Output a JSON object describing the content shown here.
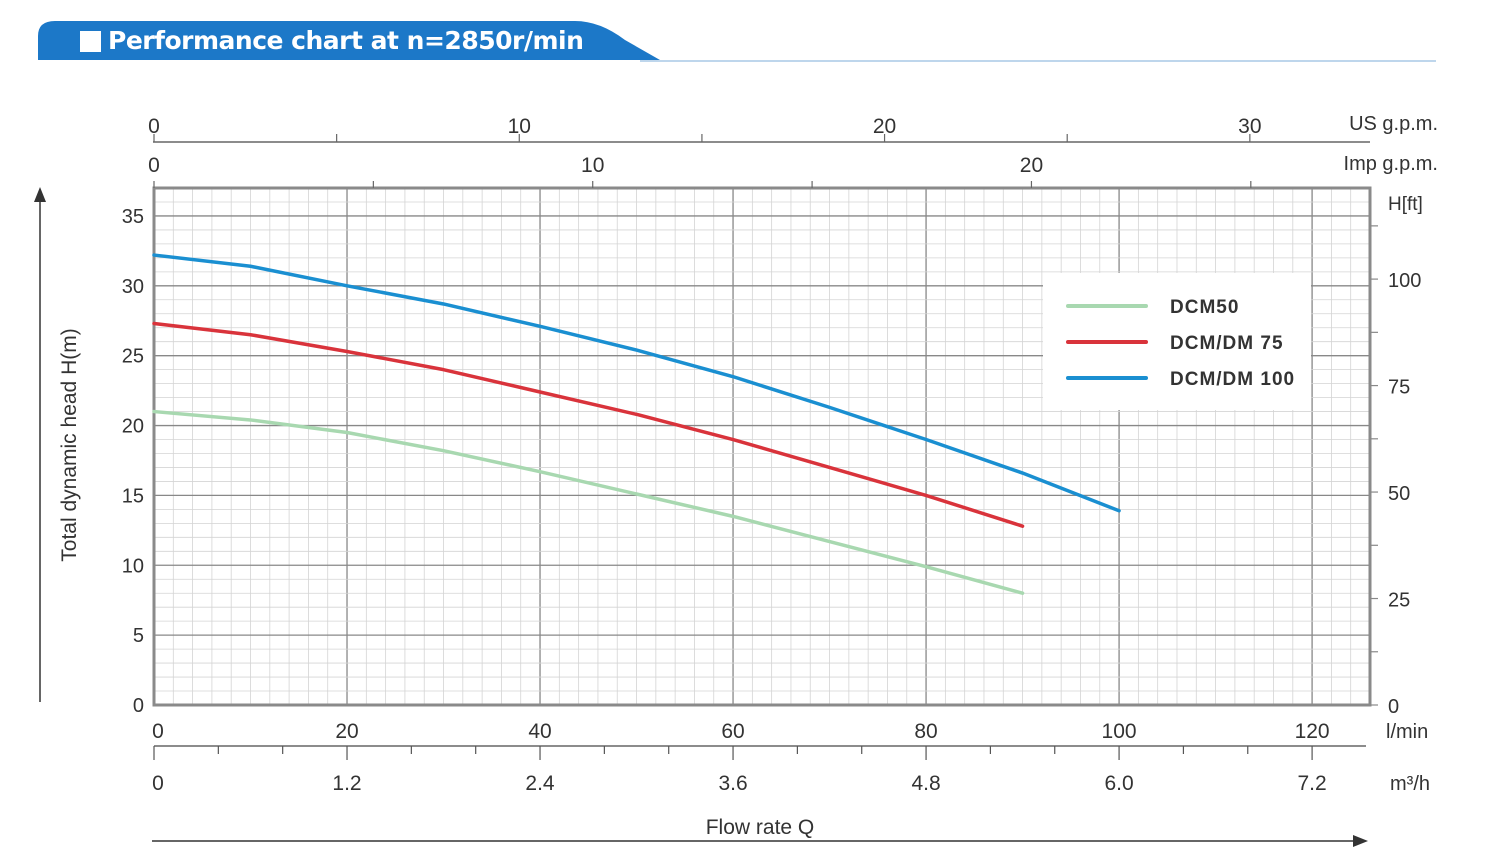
{
  "header": {
    "title": "Performance chart at n=2850r/min"
  },
  "chart_data": {
    "type": "line",
    "title": "Performance chart at n=2850r/min",
    "xlabel": "Flow rate Q",
    "ylabel": "Total dynamic head H(m)",
    "xlim": [
      0,
      126
    ],
    "ylim": [
      0,
      37
    ],
    "grid": true,
    "legend_position": "top-right",
    "x_ticks_lmin": [
      "0",
      "20",
      "40",
      "60",
      "80",
      "100",
      "120"
    ],
    "x_unit_lmin": "l/min",
    "x_ticks_m3h": [
      "0",
      "1.2",
      "2.4",
      "3.6",
      "4.8",
      "6.0",
      "7.2"
    ],
    "x_unit_m3h": "m³/h",
    "x_ticks_usgpm": [
      "0",
      "10",
      "20",
      "30"
    ],
    "x_unit_usgpm": "US g.p.m.",
    "x_ticks_impgpm": [
      "0",
      "10",
      "20"
    ],
    "x_unit_impgpm": "Imp g.p.m.",
    "y_ticks_m": [
      "0",
      "5",
      "10",
      "15",
      "20",
      "25",
      "30",
      "35"
    ],
    "y_ticks_ft": [
      "0",
      "25",
      "50",
      "75",
      "100"
    ],
    "y_unit_ft": "H[ft]",
    "series": [
      {
        "name": "DCM50",
        "color": "#a8d8b0",
        "x": [
          0,
          10,
          20,
          30,
          40,
          50,
          60,
          70,
          80,
          90
        ],
        "y": [
          21,
          20.4,
          19.5,
          18.2,
          16.7,
          15.1,
          13.5,
          11.7,
          9.9,
          8.0
        ]
      },
      {
        "name": "DCM/DM 75",
        "color": "#d9333b",
        "x": [
          0,
          10,
          20,
          30,
          40,
          50,
          60,
          70,
          80,
          90
        ],
        "y": [
          27.3,
          26.5,
          25.3,
          24.0,
          22.4,
          20.8,
          19.0,
          17.0,
          15.0,
          12.8
        ]
      },
      {
        "name": "DCM/DM 100",
        "color": "#1a8fd1",
        "x": [
          0,
          10,
          20,
          30,
          40,
          50,
          60,
          70,
          80,
          90,
          100
        ],
        "y": [
          32.2,
          31.4,
          30.0,
          28.7,
          27.1,
          25.4,
          23.5,
          21.3,
          19.0,
          16.6,
          13.9
        ]
      }
    ]
  }
}
